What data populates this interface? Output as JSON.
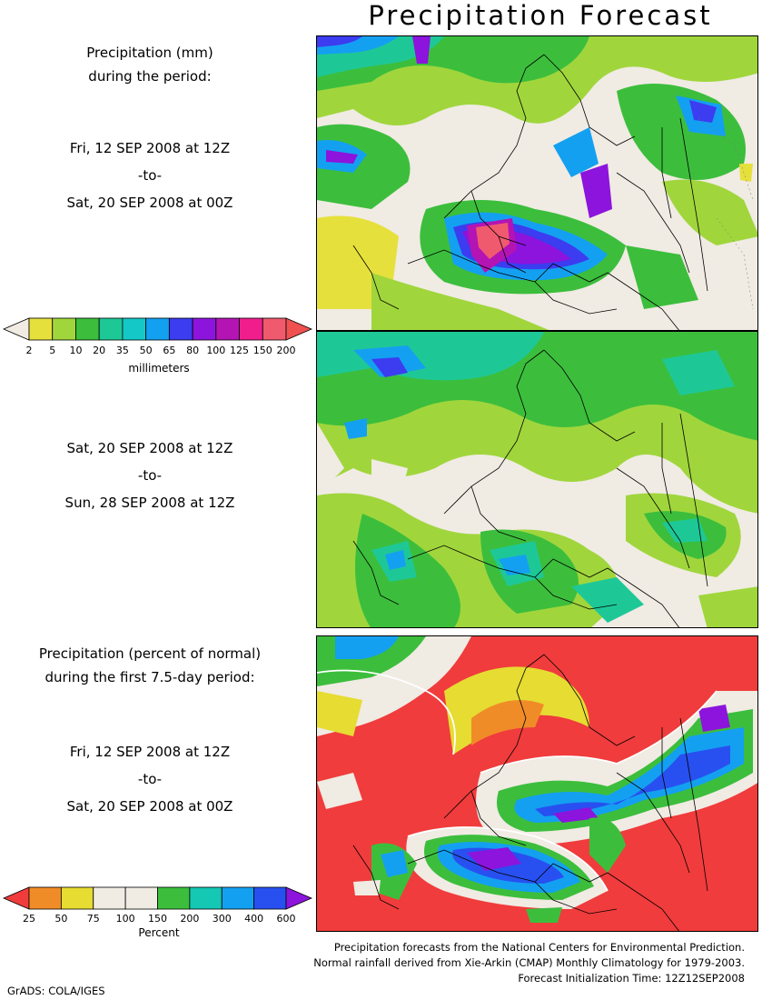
{
  "title": "Precipitation Forecast",
  "panel1": {
    "heading": [
      "Precipitation (mm)",
      "during the period:"
    ],
    "period": {
      "start": "Fri, 12 SEP 2008 at 12Z",
      "sep": "-to-",
      "end": "Sat, 20 SEP 2008 at 00Z"
    }
  },
  "panel2": {
    "period": {
      "start": "Sat, 20 SEP 2008 at 12Z",
      "sep": "-to-",
      "end": "Sun, 28 SEP 2008 at 12Z"
    }
  },
  "panel3": {
    "heading": [
      "Precipitation (percent of normal)",
      "during the first 7.5-day period:"
    ],
    "period": {
      "start": "Fri, 12 SEP 2008 at 12Z",
      "sep": "-to-",
      "end": "Sat, 20 SEP 2008 at 00Z"
    }
  },
  "colorbar_mm": {
    "ticks": [
      "2",
      "5",
      "10",
      "20",
      "35",
      "50",
      "65",
      "80",
      "100",
      "125",
      "150",
      "200"
    ],
    "unit": "millimeters",
    "colors": [
      "#f0ebe3",
      "#e6e03c",
      "#a0d63c",
      "#3cbe3c",
      "#1ec896",
      "#14c8c8",
      "#14a0f0",
      "#3c3cf0",
      "#8c14dc",
      "#b414b4",
      "#f01e8c",
      "#f05a6e",
      "#f05050"
    ]
  },
  "colorbar_pct": {
    "ticks": [
      "25",
      "50",
      "75",
      "100",
      "150",
      "200",
      "300",
      "400",
      "600"
    ],
    "unit": "Percent",
    "colors": [
      "#f03c3c",
      "#f08c28",
      "#e6dc32",
      "#f0ebe3",
      "#f0ebe3",
      "#3cbe3c",
      "#14c8b4",
      "#14a0f0",
      "#2850f0",
      "#8c14dc"
    ]
  },
  "credits": [
    "Precipitation forecasts from the National Centers for Environmental Prediction.",
    "Normal rainfall derived from Xie-Arkin (CMAP) Monthly Climatology for 1979-2003.",
    "Forecast Initialization Time: 12Z12SEP2008"
  ],
  "footer": "GrADS: COLA/IGES"
}
